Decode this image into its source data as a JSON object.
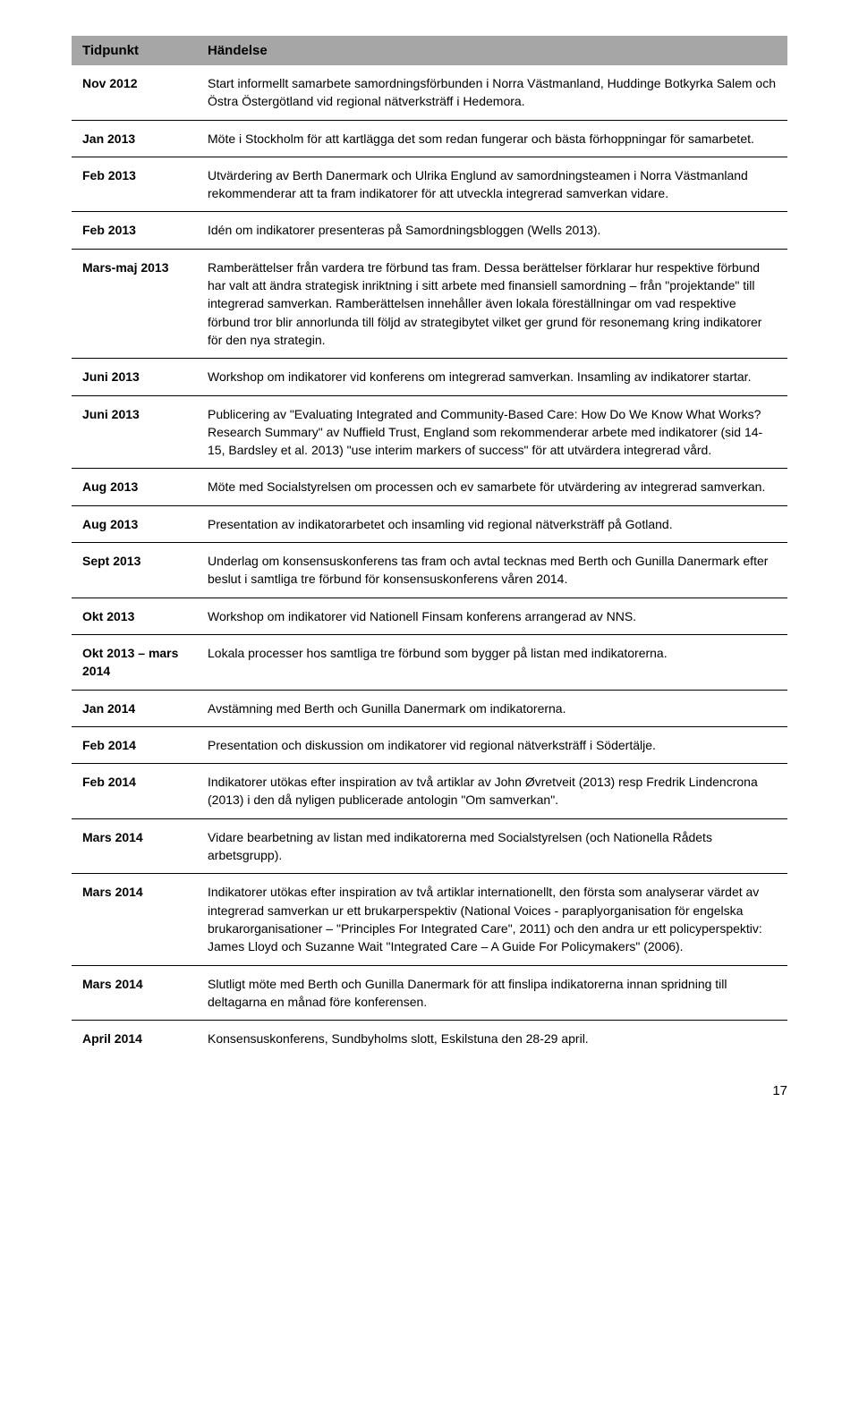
{
  "table": {
    "headers": {
      "col1": "Tidpunkt",
      "col2": "Händelse"
    },
    "rows": [
      {
        "tidpunkt": "Nov 2012",
        "handelse": "Start informellt samarbete samordningsförbunden i Norra Västmanland, Huddinge Botkyrka Salem och Östra Östergötland vid regional nätverksträff i Hedemora."
      },
      {
        "tidpunkt": "Jan 2013",
        "handelse": "Möte i Stockholm för att kartlägga det som redan fungerar och bästa förhoppningar för samarbetet."
      },
      {
        "tidpunkt": "Feb 2013",
        "handelse": "Utvärdering av Berth Danermark och Ulrika Englund av samordningsteamen i Norra Västmanland rekommenderar att ta fram indikatorer för att utveckla integrerad samverkan vidare."
      },
      {
        "tidpunkt": "Feb 2013",
        "handelse": "Idén om indikatorer presenteras på Samordningsbloggen (Wells 2013)."
      },
      {
        "tidpunkt": "Mars-maj 2013",
        "handelse": "Ramberättelser från vardera tre förbund tas fram. Dessa berättelser förklarar hur respektive förbund har valt att ändra strategisk inriktning i sitt arbete med finansiell samordning – från \"projektande\" till integrerad samverkan. Ramberättelsen innehåller även lokala föreställningar om vad respektive förbund tror blir annorlunda till följd av strategibytet vilket ger grund för resonemang kring indikatorer för den nya strategin."
      },
      {
        "tidpunkt": "Juni 2013",
        "handelse": "Workshop om indikatorer vid konferens om integrerad samverkan. Insamling av indikatorer startar."
      },
      {
        "tidpunkt": "Juni 2013",
        "handelse": "Publicering av \"Evaluating Integrated and Community-Based Care: How Do We Know What Works? Research Summary\" av Nuffield Trust, England som rekommenderar arbete med indikatorer (sid 14-15, Bardsley et al. 2013) \"use interim markers of success\" för att utvärdera integrerad vård."
      },
      {
        "tidpunkt": "Aug 2013",
        "handelse": "Möte med Socialstyrelsen om processen och ev samarbete för utvärdering av integrerad samverkan."
      },
      {
        "tidpunkt": "Aug 2013",
        "handelse": "Presentation av indikatorarbetet och insamling vid regional nätverksträff på Gotland."
      },
      {
        "tidpunkt": "Sept 2013",
        "handelse": "Underlag om konsensuskonferens tas fram och avtal tecknas med Berth och Gunilla Danermark efter beslut i samtliga tre förbund för konsensuskonferens våren 2014."
      },
      {
        "tidpunkt": "Okt 2013",
        "handelse": "Workshop om indikatorer vid Nationell Finsam konferens arrangerad av NNS."
      },
      {
        "tidpunkt": "Okt 2013 – mars 2014",
        "handelse": "Lokala processer hos samtliga tre förbund som bygger på listan med indikatorerna."
      },
      {
        "tidpunkt": "Jan 2014",
        "handelse": "Avstämning med Berth och Gunilla Danermark om indikatorerna."
      },
      {
        "tidpunkt": "Feb 2014",
        "handelse": "Presentation och diskussion om indikatorer vid regional nätverksträff i Södertälje."
      },
      {
        "tidpunkt": "Feb 2014",
        "handelse": "Indikatorer utökas efter inspiration av två artiklar av John Øvretveit (2013) resp Fredrik Lindencrona (2013) i den då nyligen publicerade antologin \"Om samverkan\"."
      },
      {
        "tidpunkt": "Mars 2014",
        "handelse": "Vidare bearbetning av listan med indikatorerna med Socialstyrelsen (och Nationella Rådets arbetsgrupp)."
      },
      {
        "tidpunkt": "Mars 2014",
        "handelse": "Indikatorer utökas efter inspiration av två artiklar internationellt, den första som analyserar värdet av integrerad samverkan ur ett brukarperspektiv (National Voices - paraplyorganisation för engelska brukarorganisationer – \"Principles For Integrated Care\", 2011) och den andra ur ett policyperspektiv: James Lloyd och Suzanne Wait \"Integrated Care – A Guide For Policymakers\" (2006)."
      },
      {
        "tidpunkt": "Mars 2014",
        "handelse": "Slutligt möte med Berth och Gunilla Danermark för att finslipa indikatorerna innan spridning till deltagarna en månad före konferensen."
      },
      {
        "tidpunkt": "April 2014",
        "handelse": "Konsensuskonferens, Sundbyholms slott, Eskilstuna den 28-29 april."
      }
    ]
  },
  "pageNumber": "17"
}
